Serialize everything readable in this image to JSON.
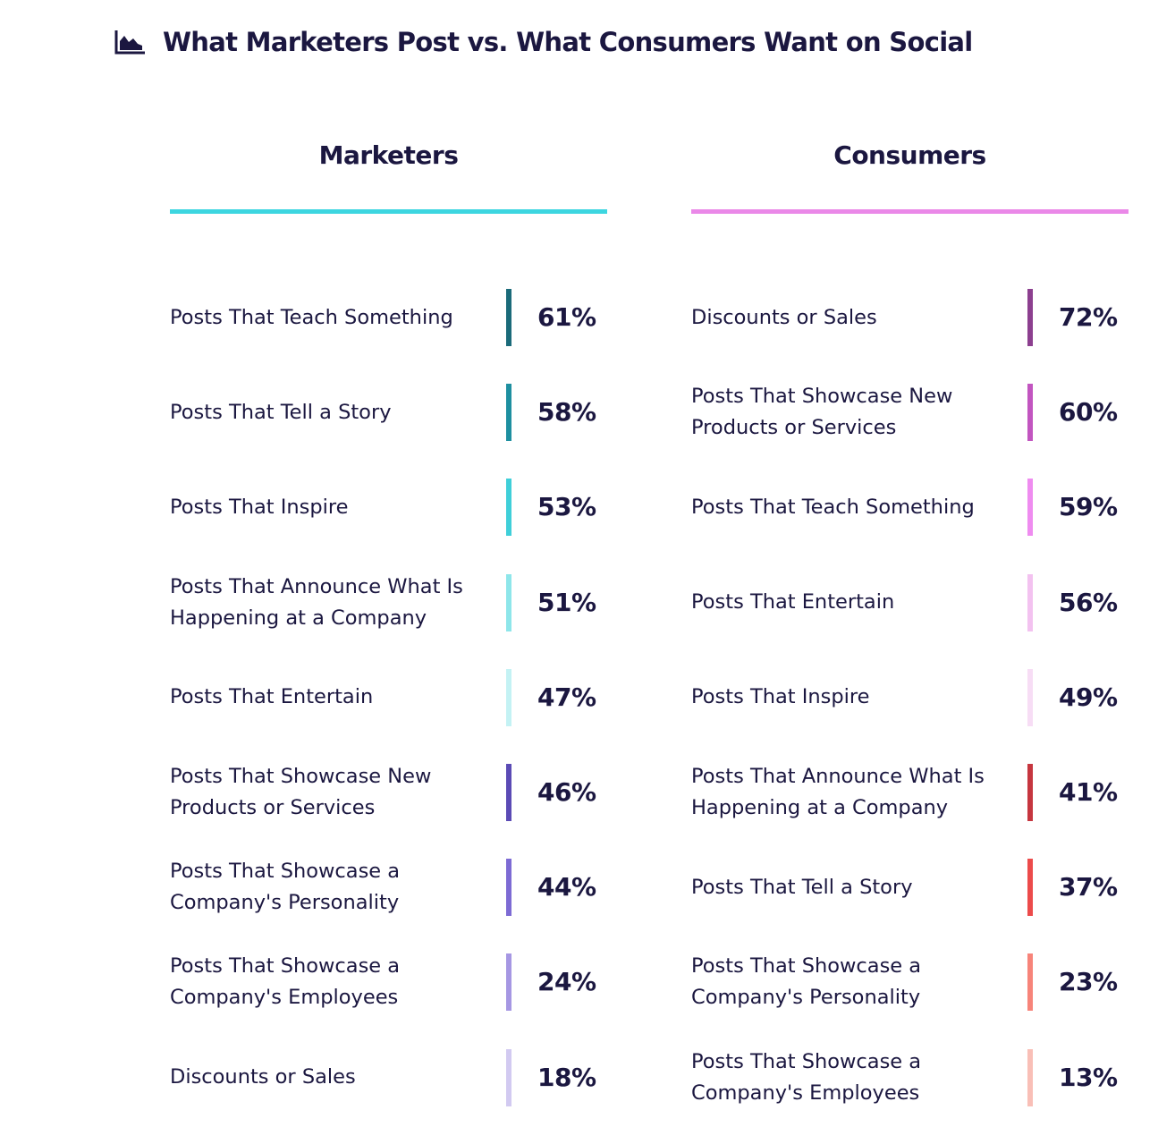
{
  "title": "What Marketers Post vs. What Consumers Want on Social",
  "icon": "area-chart-icon",
  "chart_data": {
    "type": "table",
    "title": "What Marketers Post vs. What Consumers Want on Social",
    "columns": [
      {
        "name": "Marketers",
        "accent_color": "#3dd6e0",
        "rows": [
          {
            "label": "Posts That Teach Something",
            "value": 61,
            "display": "61%",
            "color": "#1b6b7a"
          },
          {
            "label": "Posts That Tell a Story",
            "value": 58,
            "display": "58%",
            "color": "#1e8fa0"
          },
          {
            "label": "Posts That Inspire",
            "value": 53,
            "display": "53%",
            "color": "#3fcfd9"
          },
          {
            "label": "Posts That Announce What Is Happening at a Company",
            "value": 51,
            "display": "51%",
            "color": "#8ee6ea"
          },
          {
            "label": "Posts That Entertain",
            "value": 47,
            "display": "47%",
            "color": "#c4f2f4"
          },
          {
            "label": "Posts That Showcase New Products or Services",
            "value": 46,
            "display": "46%",
            "color": "#5b4bb5"
          },
          {
            "label": "Posts That Showcase a Company's Personality",
            "value": 44,
            "display": "44%",
            "color": "#7d6bd4"
          },
          {
            "label": "Posts That Showcase a Company's Employees",
            "value": 24,
            "display": "24%",
            "color": "#a697e3"
          },
          {
            "label": "Discounts or Sales",
            "value": 18,
            "display": "18%",
            "color": "#d2caf1"
          }
        ]
      },
      {
        "name": "Consumers",
        "accent_color": "#ea88e8",
        "rows": [
          {
            "label": "Discounts or Sales",
            "value": 72,
            "display": "72%",
            "color": "#8c3f8f"
          },
          {
            "label": "Posts That Showcase New Products or Services",
            "value": 60,
            "display": "60%",
            "color": "#c255c0"
          },
          {
            "label": "Posts That Teach Something",
            "value": 59,
            "display": "59%",
            "color": "#ef8cf0"
          },
          {
            "label": "Posts That Entertain",
            "value": 56,
            "display": "56%",
            "color": "#f3c2f0"
          },
          {
            "label": "Posts That Inspire",
            "value": 49,
            "display": "49%",
            "color": "#f7ddf5"
          },
          {
            "label": "Posts That Announce What Is Happening at a Company",
            "value": 41,
            "display": "41%",
            "color": "#c6363f"
          },
          {
            "label": "Posts That Tell a Story",
            "value": 37,
            "display": "37%",
            "color": "#ec4b4b"
          },
          {
            "label": "Posts That Showcase a Company's Personality",
            "value": 23,
            "display": "23%",
            "color": "#f7847a"
          },
          {
            "label": "Posts That Showcase a Company's Employees",
            "value": 13,
            "display": "13%",
            "color": "#f9bfb7"
          }
        ]
      }
    ]
  }
}
